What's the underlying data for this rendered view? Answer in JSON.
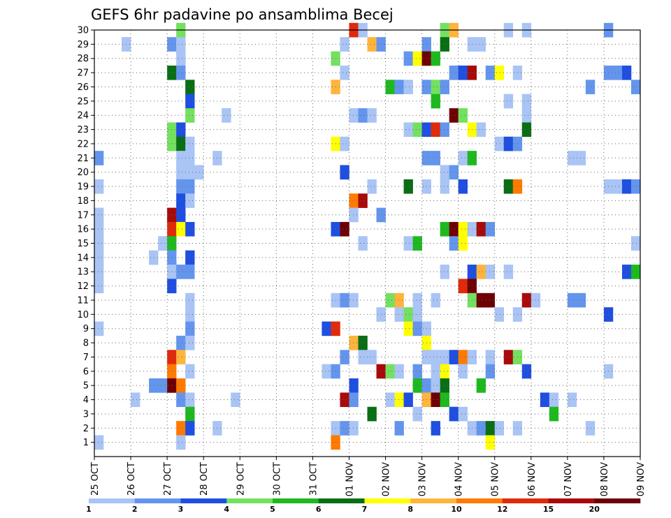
{
  "chart_data": {
    "type": "heatmap",
    "title": "GEFS 6hr padavine po ansamblima Becej",
    "xlabel": "",
    "ylabel": "",
    "x_tick_labels": [
      "25 OCT",
      "26 OCT",
      "27 OCT",
      "28 OCT",
      "29 OCT",
      "30 OCT",
      "31 OCT",
      "01 NOV",
      "02 NOV",
      "03 NOV",
      "04 NOV",
      "05 NOV",
      "06 NOV",
      "07 NOV",
      "08 NOV",
      "09 NOV"
    ],
    "y_tick_labels": [
      "1",
      "2",
      "3",
      "4",
      "5",
      "6",
      "7",
      "8",
      "9",
      "10",
      "11",
      "12",
      "13",
      "14",
      "15",
      "16",
      "17",
      "18",
      "19",
      "20",
      "21",
      "22",
      "23",
      "24",
      "25",
      "26",
      "27",
      "28",
      "29",
      "30"
    ],
    "xlim": [
      0,
      60
    ],
    "ylim": [
      0,
      30
    ],
    "colorbar": {
      "labels": [
        "1",
        "2",
        "3",
        "4",
        "5",
        "6",
        "7",
        "8",
        "10",
        "12",
        "15",
        "20"
      ],
      "colors": [
        "#a9c4f5",
        "#6495ed",
        "#1f4fe0",
        "#74e060",
        "#1fb81f",
        "#0a6e14",
        "#ffff00",
        "#ffb43c",
        "#ff7a00",
        "#e02a0a",
        "#a80a0a",
        "#6e0005"
      ]
    },
    "grid": true,
    "cells": [
      [
        9.5,
        30,
        4
      ],
      [
        28.5,
        30,
        10
      ],
      [
        29.5,
        30,
        1
      ],
      [
        38.5,
        30,
        4
      ],
      [
        39.5,
        30,
        8
      ],
      [
        45.5,
        30,
        1
      ],
      [
        47.5,
        30,
        1
      ],
      [
        56.5,
        30,
        2
      ],
      [
        3.5,
        29,
        1
      ],
      [
        8.5,
        29,
        2
      ],
      [
        9.5,
        29,
        1
      ],
      [
        27.5,
        29,
        1
      ],
      [
        30.5,
        29,
        8
      ],
      [
        31.5,
        29,
        2
      ],
      [
        36.5,
        29,
        2
      ],
      [
        38.5,
        29,
        6
      ],
      [
        41.5,
        29,
        1
      ],
      [
        42.5,
        29,
        1
      ],
      [
        9.5,
        28,
        1
      ],
      [
        26.5,
        28,
        4
      ],
      [
        34.5,
        28,
        2
      ],
      [
        35.5,
        28,
        7
      ],
      [
        36.5,
        28,
        12
      ],
      [
        37.5,
        28,
        5
      ],
      [
        8.5,
        27,
        6
      ],
      [
        9.5,
        27,
        2
      ],
      [
        27.5,
        27,
        1
      ],
      [
        39.5,
        27,
        2
      ],
      [
        40.5,
        27,
        3
      ],
      [
        41.5,
        27,
        11
      ],
      [
        43.5,
        27,
        2
      ],
      [
        44.5,
        27,
        7
      ],
      [
        46.5,
        27,
        1
      ],
      [
        56.5,
        27,
        2
      ],
      [
        57.5,
        27,
        2
      ],
      [
        58.5,
        27,
        3
      ],
      [
        10.5,
        26,
        6
      ],
      [
        26.5,
        26,
        8
      ],
      [
        32.5,
        26,
        5
      ],
      [
        33.5,
        26,
        2
      ],
      [
        34.5,
        26,
        1
      ],
      [
        36.5,
        26,
        2
      ],
      [
        37.5,
        26,
        4
      ],
      [
        38.5,
        26,
        2
      ],
      [
        54.5,
        26,
        2
      ],
      [
        59.5,
        26,
        2
      ],
      [
        10.5,
        25,
        3
      ],
      [
        37.5,
        25,
        5
      ],
      [
        45.5,
        25,
        1
      ],
      [
        47.5,
        25,
        1
      ],
      [
        10.5,
        24,
        4
      ],
      [
        14.5,
        24,
        1
      ],
      [
        28.5,
        24,
        1
      ],
      [
        29.5,
        24,
        2
      ],
      [
        30.5,
        24,
        1
      ],
      [
        39.5,
        24,
        12
      ],
      [
        40.5,
        24,
        4
      ],
      [
        47.5,
        24,
        1
      ],
      [
        8.5,
        23,
        4
      ],
      [
        9.5,
        23,
        3
      ],
      [
        34.5,
        23,
        1
      ],
      [
        35.5,
        23,
        4
      ],
      [
        36.5,
        23,
        3
      ],
      [
        37.5,
        23,
        10
      ],
      [
        38.5,
        23,
        2
      ],
      [
        41.5,
        23,
        7
      ],
      [
        42.5,
        23,
        1
      ],
      [
        47.5,
        23,
        6
      ],
      [
        8.5,
        22,
        4
      ],
      [
        9.5,
        22,
        6
      ],
      [
        10.5,
        22,
        1
      ],
      [
        26.5,
        22,
        7
      ],
      [
        27.5,
        22,
        1
      ],
      [
        44.5,
        22,
        1
      ],
      [
        45.5,
        22,
        3
      ],
      [
        46.5,
        22,
        2
      ],
      [
        0.5,
        21,
        2
      ],
      [
        9.5,
        21,
        1
      ],
      [
        10.5,
        21,
        1
      ],
      [
        13.5,
        21,
        1
      ],
      [
        36.5,
        21,
        2
      ],
      [
        37.5,
        21,
        2
      ],
      [
        40.5,
        21,
        1
      ],
      [
        41.5,
        21,
        5
      ],
      [
        52.5,
        21,
        1
      ],
      [
        53.5,
        21,
        1
      ],
      [
        9.5,
        20,
        1
      ],
      [
        10.5,
        20,
        1
      ],
      [
        11.5,
        20,
        1
      ],
      [
        27.5,
        20,
        3
      ],
      [
        38.5,
        20,
        1
      ],
      [
        39.5,
        20,
        2
      ],
      [
        0.5,
        19,
        1
      ],
      [
        9.5,
        19,
        2
      ],
      [
        10.5,
        19,
        2
      ],
      [
        30.5,
        19,
        1
      ],
      [
        34.5,
        19,
        6
      ],
      [
        36.5,
        19,
        1
      ],
      [
        38.5,
        19,
        1
      ],
      [
        40.5,
        19,
        3
      ],
      [
        45.5,
        19,
        6
      ],
      [
        46.5,
        19,
        9
      ],
      [
        56.5,
        19,
        1
      ],
      [
        57.5,
        19,
        1
      ],
      [
        58.5,
        19,
        3
      ],
      [
        59.5,
        19,
        2
      ],
      [
        9.5,
        18,
        3
      ],
      [
        10.5,
        18,
        1
      ],
      [
        28.5,
        18,
        9
      ],
      [
        29.5,
        18,
        11
      ],
      [
        0.5,
        17,
        1
      ],
      [
        8.5,
        17,
        11
      ],
      [
        9.5,
        17,
        3
      ],
      [
        28.5,
        17,
        1
      ],
      [
        31.5,
        17,
        2
      ],
      [
        0.5,
        16,
        1
      ],
      [
        8.5,
        16,
        10
      ],
      [
        9.5,
        16,
        7
      ],
      [
        10.5,
        16,
        3
      ],
      [
        26.5,
        16,
        3
      ],
      [
        27.5,
        16,
        12
      ],
      [
        38.5,
        16,
        5
      ],
      [
        39.5,
        16,
        12
      ],
      [
        40.5,
        16,
        7
      ],
      [
        41.5,
        16,
        1
      ],
      [
        42.5,
        16,
        11
      ],
      [
        43.5,
        16,
        2
      ],
      [
        0.5,
        15,
        1
      ],
      [
        7.5,
        15,
        1
      ],
      [
        8.5,
        15,
        5
      ],
      [
        29.5,
        15,
        1
      ],
      [
        34.5,
        15,
        1
      ],
      [
        35.5,
        15,
        5
      ],
      [
        39.5,
        15,
        2
      ],
      [
        40.5,
        15,
        7
      ],
      [
        59.5,
        15,
        1
      ],
      [
        0.5,
        14,
        1
      ],
      [
        6.5,
        14,
        1
      ],
      [
        8.5,
        14,
        2
      ],
      [
        10.5,
        14,
        3
      ],
      [
        0.5,
        13,
        1
      ],
      [
        8.5,
        13,
        1
      ],
      [
        9.5,
        13,
        2
      ],
      [
        10.5,
        13,
        2
      ],
      [
        38.5,
        13,
        1
      ],
      [
        41.5,
        13,
        3
      ],
      [
        42.5,
        13,
        8
      ],
      [
        43.5,
        13,
        1
      ],
      [
        45.5,
        13,
        1
      ],
      [
        58.5,
        13,
        3
      ],
      [
        59.5,
        13,
        5
      ],
      [
        0.5,
        12,
        1
      ],
      [
        8.5,
        12,
        3
      ],
      [
        40.5,
        12,
        10
      ],
      [
        41.5,
        12,
        12
      ],
      [
        10.5,
        11,
        1
      ],
      [
        26.5,
        11,
        1
      ],
      [
        27.5,
        11,
        2
      ],
      [
        28.5,
        11,
        1
      ],
      [
        32.5,
        11,
        4
      ],
      [
        33.5,
        11,
        8
      ],
      [
        35.5,
        11,
        1
      ],
      [
        37.5,
        11,
        1
      ],
      [
        41.5,
        11,
        4
      ],
      [
        42.5,
        11,
        12
      ],
      [
        43.5,
        11,
        12
      ],
      [
        47.5,
        11,
        11
      ],
      [
        48.5,
        11,
        1
      ],
      [
        52.5,
        11,
        2
      ],
      [
        53.5,
        11,
        2
      ],
      [
        10.5,
        10,
        1
      ],
      [
        31.5,
        10,
        1
      ],
      [
        33.5,
        10,
        1
      ],
      [
        34.5,
        10,
        4
      ],
      [
        35.5,
        10,
        1
      ],
      [
        44.5,
        10,
        1
      ],
      [
        46.5,
        10,
        1
      ],
      [
        56.5,
        10,
        3
      ],
      [
        0.5,
        9,
        1
      ],
      [
        10.5,
        9,
        2
      ],
      [
        25.5,
        9,
        3
      ],
      [
        26.5,
        9,
        10
      ],
      [
        34.5,
        9,
        7
      ],
      [
        35.5,
        9,
        2
      ],
      [
        36.5,
        9,
        1
      ],
      [
        9.5,
        8,
        2
      ],
      [
        10.5,
        8,
        1
      ],
      [
        28.5,
        8,
        8
      ],
      [
        29.5,
        8,
        6
      ],
      [
        36.5,
        8,
        7
      ],
      [
        8.5,
        7,
        10
      ],
      [
        9.5,
        7,
        8
      ],
      [
        27.5,
        7,
        2
      ],
      [
        29.5,
        7,
        1
      ],
      [
        30.5,
        7,
        1
      ],
      [
        36.5,
        7,
        1
      ],
      [
        37.5,
        7,
        1
      ],
      [
        38.5,
        7,
        1
      ],
      [
        39.5,
        7,
        3
      ],
      [
        40.5,
        7,
        9
      ],
      [
        41.5,
        7,
        1
      ],
      [
        43.5,
        7,
        1
      ],
      [
        45.5,
        7,
        11
      ],
      [
        46.5,
        7,
        4
      ],
      [
        8.5,
        6,
        9
      ],
      [
        10.5,
        6,
        1
      ],
      [
        25.5,
        6,
        1
      ],
      [
        26.5,
        6,
        2
      ],
      [
        31.5,
        6,
        11
      ],
      [
        32.5,
        6,
        4
      ],
      [
        33.5,
        6,
        1
      ],
      [
        35.5,
        6,
        2
      ],
      [
        37.5,
        6,
        1
      ],
      [
        38.5,
        6,
        7
      ],
      [
        40.5,
        6,
        1
      ],
      [
        43.5,
        6,
        2
      ],
      [
        47.5,
        6,
        3
      ],
      [
        56.5,
        6,
        1
      ],
      [
        6.5,
        5,
        2
      ],
      [
        7.5,
        5,
        2
      ],
      [
        8.5,
        5,
        12
      ],
      [
        9.5,
        5,
        9
      ],
      [
        28.5,
        5,
        3
      ],
      [
        35.5,
        5,
        5
      ],
      [
        36.5,
        5,
        2
      ],
      [
        37.5,
        5,
        1
      ],
      [
        38.5,
        5,
        6
      ],
      [
        42.5,
        5,
        5
      ],
      [
        4.5,
        4,
        1
      ],
      [
        9.5,
        4,
        2
      ],
      [
        10.5,
        4,
        1
      ],
      [
        15.5,
        4,
        1
      ],
      [
        27.5,
        4,
        11
      ],
      [
        28.5,
        4,
        2
      ],
      [
        32.5,
        4,
        1
      ],
      [
        33.5,
        4,
        7
      ],
      [
        34.5,
        4,
        3
      ],
      [
        36.5,
        4,
        8
      ],
      [
        37.5,
        4,
        12
      ],
      [
        38.5,
        4,
        5
      ],
      [
        49.5,
        4,
        3
      ],
      [
        50.5,
        4,
        1
      ],
      [
        52.5,
        4,
        1
      ],
      [
        10.5,
        3,
        5
      ],
      [
        30.5,
        3,
        6
      ],
      [
        35.5,
        3,
        1
      ],
      [
        39.5,
        3,
        3
      ],
      [
        40.5,
        3,
        1
      ],
      [
        50.5,
        3,
        5
      ],
      [
        9.5,
        2,
        9
      ],
      [
        10.5,
        2,
        3
      ],
      [
        13.5,
        2,
        1
      ],
      [
        26.5,
        2,
        1
      ],
      [
        27.5,
        2,
        2
      ],
      [
        28.5,
        2,
        1
      ],
      [
        33.5,
        2,
        2
      ],
      [
        37.5,
        2,
        3
      ],
      [
        41.5,
        2,
        1
      ],
      [
        42.5,
        2,
        2
      ],
      [
        43.5,
        2,
        6
      ],
      [
        44.5,
        2,
        1
      ],
      [
        46.5,
        2,
        1
      ],
      [
        54.5,
        2,
        1
      ],
      [
        0.5,
        1,
        1
      ],
      [
        9.5,
        1,
        1
      ],
      [
        26.5,
        1,
        9
      ],
      [
        43.5,
        1,
        7
      ]
    ]
  }
}
